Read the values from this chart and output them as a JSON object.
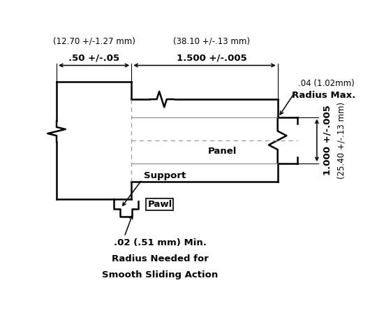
{
  "bg_color": "#ffffff",
  "line_color": "#000000",
  "dim_top_left_line1": ".50 +/-.05",
  "dim_top_left_line2": "(12.70 +/-1.27 mm)",
  "dim_top_mid_line1": "1.500 +/-.005",
  "dim_top_mid_line2": "(38.10 +/-.13 mm)",
  "dim_radius_line1": ".04 (1.02mm)",
  "dim_radius_line2": "Radius Max.",
  "dim_right_line1": "1.000 +/-.005",
  "dim_right_line2": "(25.40 +/-.13 mm)",
  "label_support": "Support",
  "label_panel": "Panel",
  "label_pawl": "Pawl",
  "dim_bottom_line1": ".02 (.51 mm) Min.",
  "dim_bottom_line2": "Radius Needed for",
  "dim_bottom_line3": "Smooth Sliding Action"
}
